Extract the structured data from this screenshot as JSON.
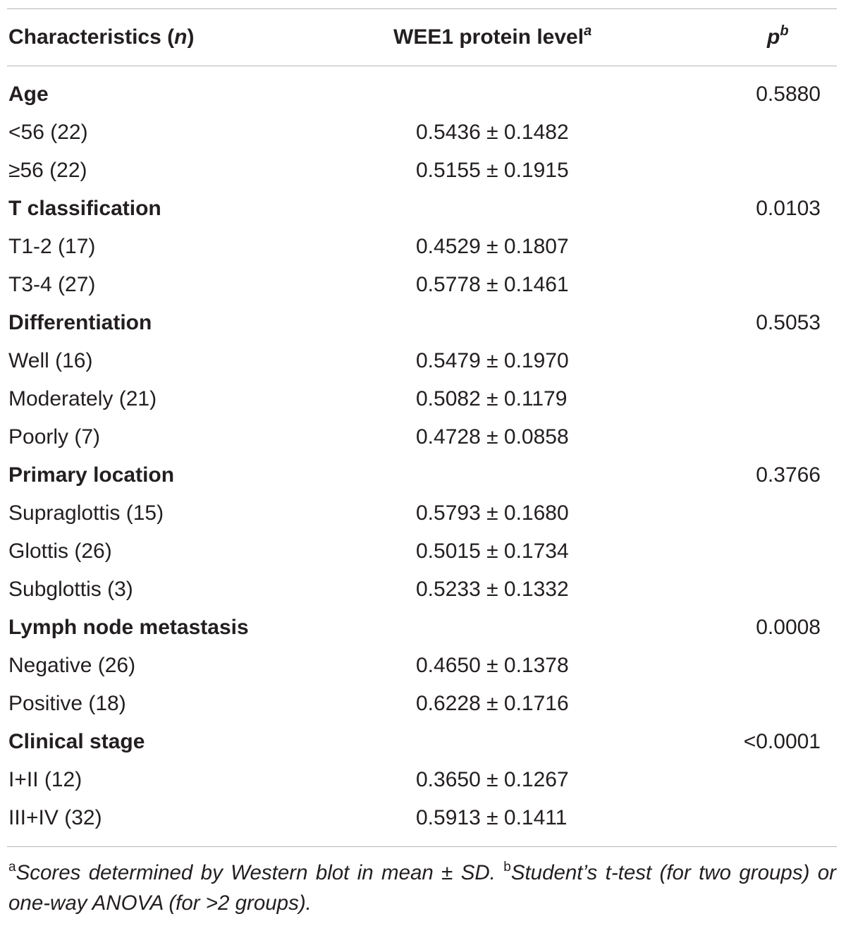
{
  "header": {
    "characteristics": [
      "Characteristics (",
      "n",
      ")"
    ],
    "level": [
      "WEE1 protein level",
      "a"
    ],
    "p": [
      "p",
      "b"
    ]
  },
  "groups": [
    {
      "name": "Age",
      "p": "0.5880",
      "rows": [
        [
          "<56 (22)",
          "0.5436 ± 0.1482"
        ],
        [
          "≥56 (22)",
          "0.5155 ± 0.1915"
        ]
      ]
    },
    {
      "name": "T classification",
      "p": "0.0103",
      "rows": [
        [
          "T1-2 (17)",
          "0.4529 ± 0.1807"
        ],
        [
          "T3-4 (27)",
          "0.5778 ± 0.1461"
        ]
      ]
    },
    {
      "name": "Differentiation",
      "p": "0.5053",
      "rows": [
        [
          "Well (16)",
          "0.5479 ± 0.1970"
        ],
        [
          "Moderately (21)",
          "0.5082 ± 0.1179"
        ],
        [
          "Poorly (7)",
          "0.4728 ± 0.0858"
        ]
      ]
    },
    {
      "name": "Primary location",
      "p": "0.3766",
      "rows": [
        [
          "Supraglottis (15)",
          "0.5793 ± 0.1680"
        ],
        [
          "Glottis (26)",
          "0.5015 ± 0.1734"
        ],
        [
          "Subglottis (3)",
          "0.5233 ± 0.1332"
        ]
      ]
    },
    {
      "name": "Lymph node metastasis",
      "p": "0.0008",
      "rows": [
        [
          "Negative (26)",
          "0.4650 ± 0.1378"
        ],
        [
          "Positive (18)",
          "0.6228 ± 0.1716"
        ]
      ]
    },
    {
      "name": "Clinical stage",
      "p": "<0.0001",
      "rows": [
        [
          "I+II (12)",
          "0.3650 ± 0.1267"
        ],
        [
          "III+IV (32)",
          "0.5913 ± 0.1411"
        ]
      ]
    }
  ],
  "footnote": [
    "a",
    "Scores determined by Western blot in mean ± SD. ",
    "b",
    "Student’s t-test (for two groups) or one-way ANOVA (for >2 groups)."
  ]
}
